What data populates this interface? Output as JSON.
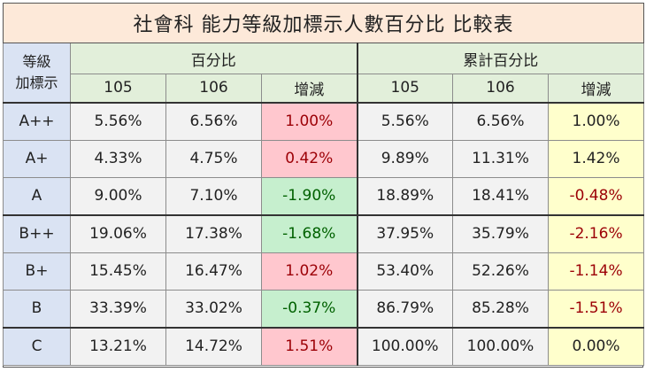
{
  "title": "社會科  能力等級加標示人數百分比 比較表",
  "headers": {
    "grade_label": "等級\n加標示",
    "group_percent": "百分比",
    "group_cumulative": "累計百分比",
    "year_a": "105",
    "year_b": "106",
    "change": "增減"
  },
  "rows": [
    {
      "grade": "A++",
      "p105": "5.56%",
      "p106": "6.56%",
      "pchg": "1.00%",
      "pdir": "up",
      "c105": "5.56%",
      "c106": "6.56%",
      "cchg": "1.00%",
      "cdir": "pos"
    },
    {
      "grade": "A+",
      "p105": "4.33%",
      "p106": "4.75%",
      "pchg": "0.42%",
      "pdir": "up",
      "c105": "9.89%",
      "c106": "11.31%",
      "cchg": "1.42%",
      "cdir": "pos"
    },
    {
      "grade": "A",
      "p105": "9.00%",
      "p106": "7.10%",
      "pchg": "-1.90%",
      "pdir": "down",
      "c105": "18.89%",
      "c106": "18.41%",
      "cchg": "-0.48%",
      "cdir": "neg"
    },
    {
      "grade": "B++",
      "p105": "19.06%",
      "p106": "17.38%",
      "pchg": "-1.68%",
      "pdir": "down",
      "c105": "37.95%",
      "c106": "35.79%",
      "cchg": "-2.16%",
      "cdir": "neg"
    },
    {
      "grade": "B+",
      "p105": "15.45%",
      "p106": "16.47%",
      "pchg": "1.02%",
      "pdir": "up",
      "c105": "53.40%",
      "c106": "52.26%",
      "cchg": "-1.14%",
      "cdir": "neg"
    },
    {
      "grade": "B",
      "p105": "33.39%",
      "p106": "33.02%",
      "pchg": "-0.37%",
      "pdir": "down",
      "c105": "86.79%",
      "c106": "85.28%",
      "cchg": "-1.51%",
      "cdir": "neg"
    },
    {
      "grade": "C",
      "p105": "13.21%",
      "p106": "14.72%",
      "pchg": "1.51%",
      "pdir": "up",
      "c105": "100.00%",
      "c106": "100.00%",
      "cchg": "0.00%",
      "cdir": "pos"
    }
  ],
  "colors": {
    "title_bg": "#fde9d9",
    "header_bg": "#e2efda",
    "grade_bg": "#dae3f3",
    "value_bg": "#f2f2f2",
    "increase_bg": "#ffc7ce",
    "increase_text": "#9c0006",
    "decrease_bg": "#c6efce",
    "decrease_text": "#006100",
    "cumulative_change_bg": "#ffffcc"
  }
}
